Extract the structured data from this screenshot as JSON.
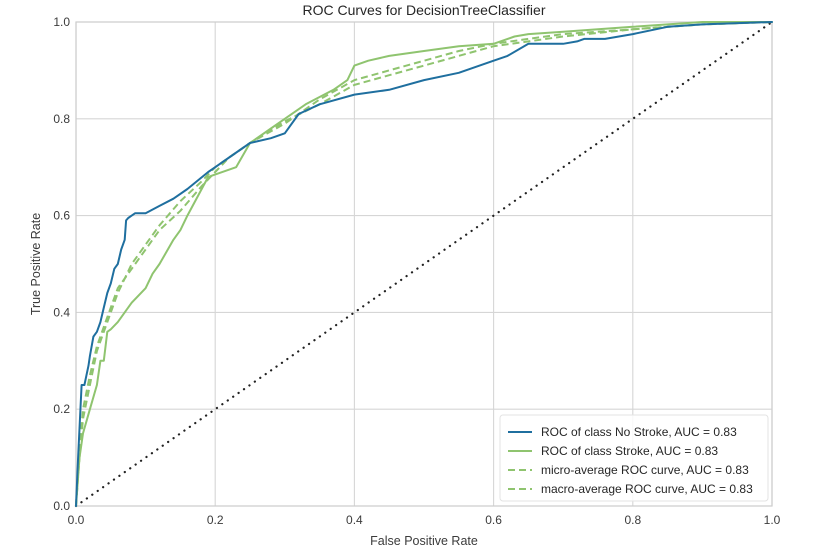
{
  "chart_data": {
    "type": "line",
    "title": "ROC Curves for DecisionTreeClassifier",
    "xlabel": "False Positive Rate",
    "ylabel": "True Positive Rate",
    "xlim": [
      0.0,
      1.0
    ],
    "ylim": [
      0.0,
      1.0
    ],
    "xticks": [
      "0.0",
      "0.2",
      "0.4",
      "0.6",
      "0.8",
      "1.0"
    ],
    "yticks": [
      "0.0",
      "0.2",
      "0.4",
      "0.6",
      "0.8",
      "1.0"
    ],
    "grid": true,
    "legend_position": "lower right",
    "series": [
      {
        "name": "ROC of class No Stroke, AUC = 0.83",
        "color": "#1f6f9f",
        "style": "solid",
        "x": [
          0,
          0.003,
          0.008,
          0.012,
          0.018,
          0.02,
          0.025,
          0.03,
          0.035,
          0.04,
          0.045,
          0.05,
          0.055,
          0.06,
          0.065,
          0.07,
          0.072,
          0.075,
          0.08,
          0.085,
          0.1,
          0.12,
          0.14,
          0.16,
          0.19,
          0.2,
          0.22,
          0.25,
          0.28,
          0.3,
          0.32,
          0.35,
          0.4,
          0.45,
          0.5,
          0.55,
          0.6,
          0.62,
          0.65,
          0.7,
          0.72,
          0.73,
          0.76,
          0.8,
          0.85,
          0.9,
          1.0
        ],
        "y": [
          0,
          0.1,
          0.25,
          0.25,
          0.29,
          0.31,
          0.35,
          0.36,
          0.38,
          0.41,
          0.44,
          0.46,
          0.49,
          0.5,
          0.53,
          0.55,
          0.59,
          0.595,
          0.6,
          0.605,
          0.605,
          0.62,
          0.635,
          0.655,
          0.69,
          0.7,
          0.72,
          0.75,
          0.76,
          0.77,
          0.81,
          0.83,
          0.85,
          0.86,
          0.88,
          0.895,
          0.92,
          0.93,
          0.955,
          0.955,
          0.96,
          0.965,
          0.965,
          0.975,
          0.99,
          0.995,
          1.0
        ]
      },
      {
        "name": "ROC of class Stroke, AUC = 0.83",
        "color": "#8fc46f",
        "style": "solid",
        "x": [
          0,
          0.005,
          0.01,
          0.02,
          0.03,
          0.035,
          0.04,
          0.045,
          0.05,
          0.06,
          0.07,
          0.08,
          0.1,
          0.11,
          0.12,
          0.14,
          0.15,
          0.16,
          0.19,
          0.23,
          0.25,
          0.28,
          0.3,
          0.33,
          0.37,
          0.39,
          0.4,
          0.42,
          0.45,
          0.5,
          0.55,
          0.6,
          0.63,
          0.65,
          0.7,
          0.75,
          0.8,
          0.85,
          0.9,
          1.0
        ],
        "y": [
          0,
          0.1,
          0.15,
          0.2,
          0.25,
          0.3,
          0.3,
          0.36,
          0.365,
          0.38,
          0.4,
          0.42,
          0.45,
          0.48,
          0.5,
          0.55,
          0.57,
          0.6,
          0.68,
          0.7,
          0.75,
          0.78,
          0.8,
          0.83,
          0.86,
          0.88,
          0.91,
          0.92,
          0.93,
          0.94,
          0.95,
          0.955,
          0.97,
          0.975,
          0.98,
          0.985,
          0.99,
          0.995,
          1.0,
          1.0
        ]
      },
      {
        "name": "micro-average ROC curve, AUC = 0.83",
        "color": "#8fc46f",
        "style": "dashed",
        "x": [
          0,
          0.005,
          0.01,
          0.02,
          0.03,
          0.04,
          0.05,
          0.06,
          0.08,
          0.1,
          0.12,
          0.15,
          0.18,
          0.2,
          0.22,
          0.25,
          0.3,
          0.35,
          0.4,
          0.45,
          0.5,
          0.55,
          0.6,
          0.65,
          0.7,
          0.8,
          0.9,
          1.0
        ],
        "y": [
          0,
          0.1,
          0.18,
          0.25,
          0.32,
          0.36,
          0.4,
          0.44,
          0.5,
          0.54,
          0.58,
          0.63,
          0.67,
          0.7,
          0.72,
          0.75,
          0.79,
          0.84,
          0.88,
          0.9,
          0.92,
          0.94,
          0.955,
          0.965,
          0.975,
          0.985,
          0.995,
          1.0
        ]
      },
      {
        "name": "macro-average ROC curve, AUC = 0.83",
        "color": "#8fc46f",
        "style": "dashed",
        "x": [
          0,
          0.005,
          0.01,
          0.02,
          0.03,
          0.04,
          0.05,
          0.06,
          0.08,
          0.1,
          0.12,
          0.15,
          0.18,
          0.2,
          0.22,
          0.25,
          0.3,
          0.35,
          0.4,
          0.45,
          0.5,
          0.55,
          0.6,
          0.65,
          0.7,
          0.8,
          0.9,
          1.0
        ],
        "y": [
          0,
          0.12,
          0.2,
          0.27,
          0.33,
          0.37,
          0.41,
          0.45,
          0.49,
          0.53,
          0.57,
          0.61,
          0.66,
          0.69,
          0.72,
          0.75,
          0.795,
          0.83,
          0.87,
          0.89,
          0.91,
          0.93,
          0.95,
          0.96,
          0.97,
          0.985,
          0.995,
          1.0
        ]
      },
      {
        "name": "chance",
        "color": "#222222",
        "style": "dotted",
        "x": [
          0,
          1
        ],
        "y": [
          0,
          1
        ]
      }
    ]
  },
  "legend": {
    "items": [
      {
        "label": "ROC of class No Stroke, AUC = 0.83",
        "color": "#1f6f9f",
        "style": "solid"
      },
      {
        "label": "ROC of class Stroke, AUC = 0.83",
        "color": "#8fc46f",
        "style": "solid"
      },
      {
        "label": "micro-average ROC curve, AUC = 0.83",
        "color": "#8fc46f",
        "style": "dashed"
      },
      {
        "label": "macro-average ROC curve, AUC = 0.83",
        "color": "#8fc46f",
        "style": "dashed"
      }
    ]
  },
  "colors": {
    "grid": "#d6d6d6",
    "axis": "#cccccc",
    "text": "#3b3b3b"
  }
}
